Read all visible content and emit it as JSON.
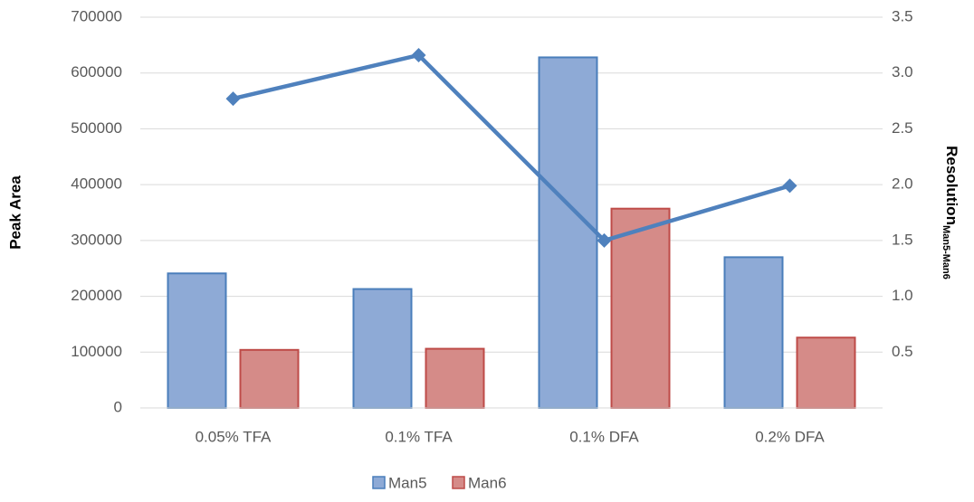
{
  "chart_data": {
    "type": "bar_line",
    "categories": [
      "0.05% TFA",
      "0.1% TFA",
      "0.1% DFA",
      "0.2% DFA"
    ],
    "series": [
      {
        "name": "Man5",
        "color": "#8eaad6",
        "values": [
          241000,
          213000,
          628000,
          270000
        ]
      },
      {
        "name": "Man6",
        "color": "#d58b88",
        "values": [
          104000,
          106000,
          357000,
          126000
        ]
      },
      {
        "color": "#4f81bd",
        "axis": "y2",
        "values": [
          2.77,
          3.16,
          1.5,
          1.99
        ]
      }
    ],
    "ylabel": "Peak Area",
    "y2label": "Resolution",
    "y2label_sub": "Man5-Man6",
    "ylim": [
      0,
      700000
    ],
    "yticks": [
      0,
      100000,
      200000,
      300000,
      400000,
      500000,
      600000,
      700000
    ],
    "y2lim": [
      0,
      3.5
    ],
    "y2ticks": [
      0.5,
      {
        "value": 1,
        "label": "1.0"
      },
      1.5,
      {
        "value": 2,
        "label": "2.0"
      },
      2.5,
      {
        "value": 3,
        "label": "3.0"
      },
      3.5
    ],
    "grid": true,
    "legend": "bottom"
  }
}
